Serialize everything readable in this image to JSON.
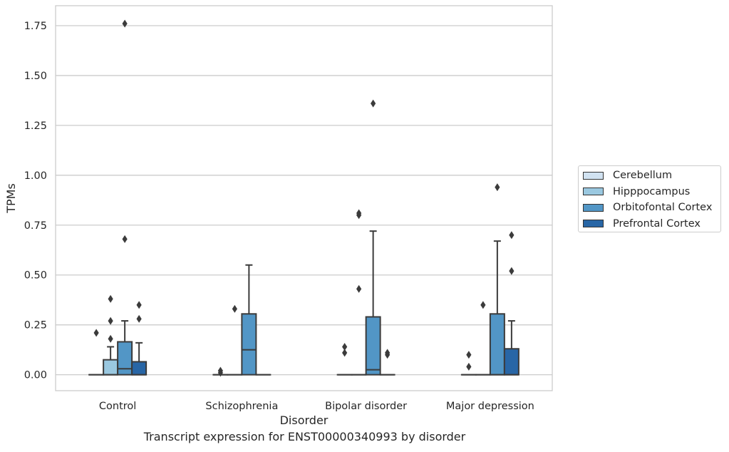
{
  "caption": "Transcript expression for ENST00000340993 by disorder",
  "chart_data": {
    "type": "box",
    "xlabel": "Disorder",
    "ylabel": "TPMs",
    "categories": [
      "Control",
      "Schizophrenia",
      "Bipolar disorder",
      "Major depression"
    ],
    "ylim": [
      -0.08,
      1.85
    ],
    "yticks": [
      "0.00",
      "0.25",
      "0.50",
      "0.75",
      "1.00",
      "1.25",
      "1.50",
      "1.75"
    ],
    "grid": "horizontal",
    "legend_position": "right",
    "legend": [
      "Cerebellum",
      "Hipppocampus",
      "Orbitofontal Cortex",
      "Prefrontal Cortex"
    ],
    "series": [
      {
        "name": "Cerebellum",
        "color": "#d1e2f1",
        "boxes": [
          {
            "q1": 0,
            "median": 0,
            "q3": 0,
            "whisker_low": 0,
            "whisker_high": 0,
            "outliers": [
              0.21
            ]
          },
          {
            "q1": 0,
            "median": 0,
            "q3": 0,
            "whisker_low": 0,
            "whisker_high": 0,
            "outliers": [
              0.01,
              0.02
            ]
          },
          {
            "q1": 0,
            "median": 0,
            "q3": 0,
            "whisker_low": 0,
            "whisker_high": 0,
            "outliers": [
              0.11,
              0.14
            ]
          },
          {
            "q1": 0,
            "median": 0,
            "q3": 0,
            "whisker_low": 0,
            "whisker_high": 0,
            "outliers": [
              0.04,
              0.1
            ]
          }
        ]
      },
      {
        "name": "Hipppocampus",
        "color": "#9ac8e0",
        "boxes": [
          {
            "q1": 0,
            "median": 0,
            "q3": 0.075,
            "whisker_low": 0,
            "whisker_high": 0.14,
            "outliers": [
              0.18,
              0.27,
              0.38
            ]
          },
          {
            "q1": 0,
            "median": 0,
            "q3": 0,
            "whisker_low": 0,
            "whisker_high": 0,
            "outliers": [
              0.33
            ]
          },
          {
            "q1": 0,
            "median": 0,
            "q3": 0,
            "whisker_low": 0,
            "whisker_high": 0,
            "outliers": [
              0.43,
              0.8,
              0.81
            ]
          },
          {
            "q1": 0,
            "median": 0,
            "q3": 0,
            "whisker_low": 0,
            "whisker_high": 0,
            "outliers": [
              0.35
            ]
          }
        ]
      },
      {
        "name": "Orbitofontal Cortex",
        "color": "#5296c6",
        "boxes": [
          {
            "q1": 0,
            "median": 0.03,
            "q3": 0.165,
            "whisker_low": 0,
            "whisker_high": 0.27,
            "outliers": [
              0.68,
              1.76
            ]
          },
          {
            "q1": 0,
            "median": 0.125,
            "q3": 0.305,
            "whisker_low": 0,
            "whisker_high": 0.55,
            "outliers": []
          },
          {
            "q1": 0,
            "median": 0.025,
            "q3": 0.29,
            "whisker_low": 0,
            "whisker_high": 0.72,
            "outliers": [
              1.36
            ]
          },
          {
            "q1": 0,
            "median": 0,
            "q3": 0.305,
            "whisker_low": 0,
            "whisker_high": 0.67,
            "outliers": [
              0.94
            ]
          }
        ]
      },
      {
        "name": "Prefrontal Cortex",
        "color": "#2866a6",
        "boxes": [
          {
            "q1": 0,
            "median": 0,
            "q3": 0.065,
            "whisker_low": 0,
            "whisker_high": 0.16,
            "outliers": [
              0.28,
              0.35
            ]
          },
          {
            "q1": 0,
            "median": 0,
            "q3": 0,
            "whisker_low": 0,
            "whisker_high": 0,
            "outliers": []
          },
          {
            "q1": 0,
            "median": 0,
            "q3": 0,
            "whisker_low": 0,
            "whisker_high": 0,
            "outliers": [
              0.1,
              0.11
            ]
          },
          {
            "q1": 0,
            "median": 0,
            "q3": 0.13,
            "whisker_low": 0,
            "whisker_high": 0.27,
            "outliers": [
              0.52,
              0.7
            ]
          }
        ]
      }
    ]
  }
}
